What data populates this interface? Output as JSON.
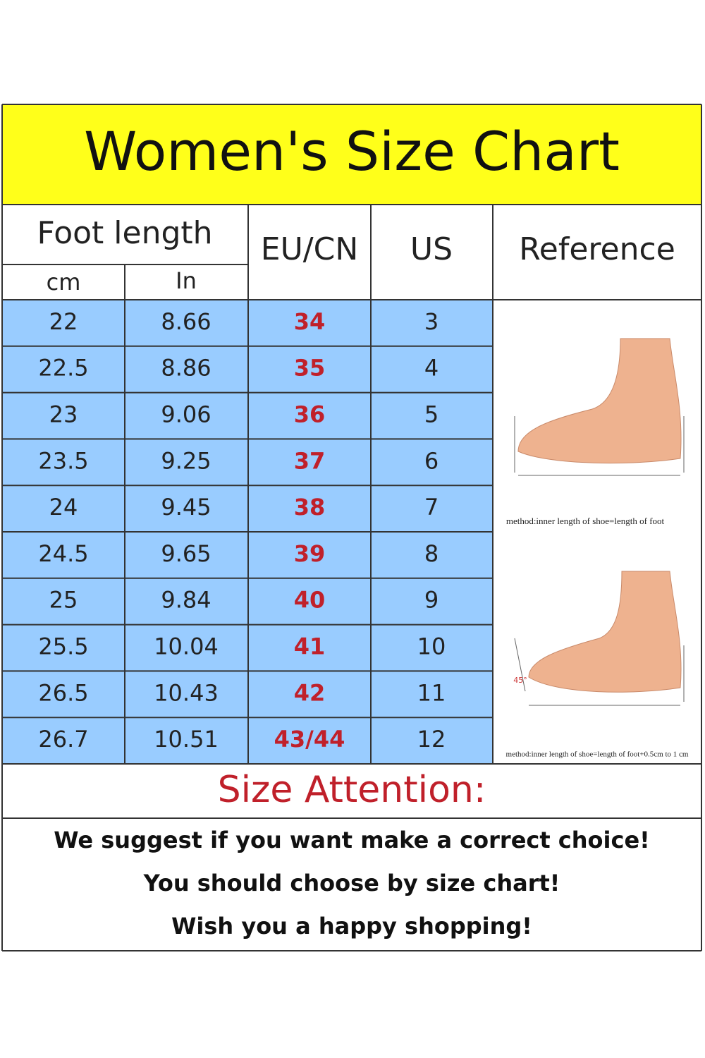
{
  "title": "Women's Size Chart",
  "columns": {
    "foot_length": "Foot length",
    "cm": "cm",
    "in": "In",
    "eu_cn": "EU/CN",
    "us": "US",
    "reference": "Reference"
  },
  "rows": [
    [
      "22",
      "8.66",
      "34",
      "3"
    ],
    [
      "22.5",
      "8.86",
      "35",
      "4"
    ],
    [
      "23",
      "9.06",
      "36",
      "5"
    ],
    [
      "23.5",
      "9.25",
      "37",
      "6"
    ],
    [
      "24",
      "9.45",
      "38",
      "7"
    ],
    [
      "24.5",
      "9.65",
      "39",
      "8"
    ],
    [
      "25",
      "9.84",
      "40",
      "9"
    ],
    [
      "25.5",
      "10.04",
      "41",
      "10"
    ],
    [
      "26.5",
      "10.43",
      "42",
      "11"
    ],
    [
      "26.7",
      "10.51",
      "43/44",
      "12"
    ]
  ],
  "reference": {
    "angle": "45°",
    "notes": [
      "method:inner length of shoe=length of foot",
      "method:inner length of shoe=length of foot+0.5cm to 1 cm"
    ]
  },
  "attention": {
    "title": "Size Attention:",
    "lines": [
      "We suggest if you want make a correct choice!",
      "You should choose by size chart!",
      "Wish you a happy shopping!"
    ]
  }
}
